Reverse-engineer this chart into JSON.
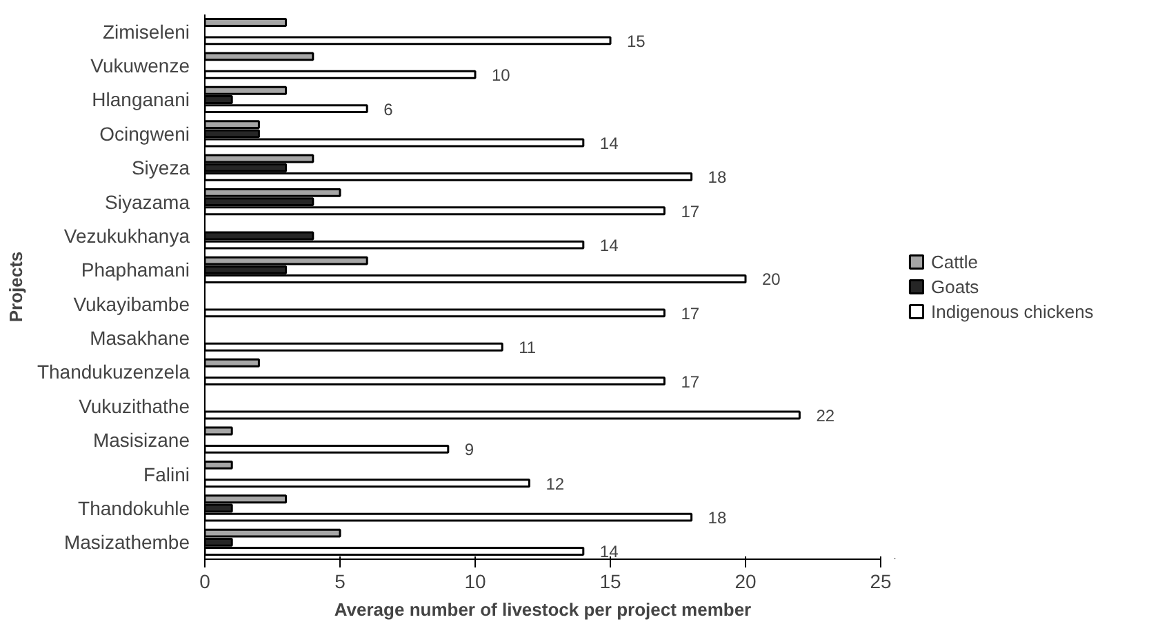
{
  "chart_data": {
    "type": "bar",
    "orientation": "horizontal",
    "xlabel": "Average number of livestock per project member",
    "ylabel": "Projects",
    "categories": [
      "Zimiseleni",
      "Vukuwenze",
      "Hlanganani",
      "Ocingweni",
      "Siyeza",
      "Siyazama",
      "Vezukukhanya",
      "Phaphamani",
      "Vukayibambe",
      "Masakhane",
      "Thandukuzenzela",
      "Vukuzithathe",
      "Masisizane",
      "Falini",
      "Thandokuhle",
      "Masizathembe"
    ],
    "series": [
      {
        "name": "Cattle",
        "color": "#a6a6a6",
        "values": [
          3,
          4,
          3,
          2,
          4,
          5,
          null,
          6,
          null,
          null,
          2,
          null,
          1,
          1,
          3,
          5
        ]
      },
      {
        "name": "Goats",
        "color": "#262626",
        "values": [
          null,
          null,
          1,
          2,
          3,
          4,
          4,
          3,
          null,
          null,
          null,
          null,
          null,
          null,
          1,
          1
        ]
      },
      {
        "name": "Indigenous chickens",
        "color": "#ffffff",
        "values": [
          15,
          10,
          6,
          14,
          18,
          17,
          14,
          20,
          17,
          11,
          17,
          22,
          9,
          12,
          18,
          14
        ],
        "value_labels": [
          "15",
          "10",
          "6",
          "14",
          "18",
          "17",
          "14",
          "20",
          "17",
          "11",
          "17",
          "22",
          "9",
          "12",
          "18",
          "14"
        ]
      }
    ],
    "xlim": [
      0,
      25
    ],
    "xticks": [
      0,
      5,
      10,
      15,
      20,
      25
    ],
    "grid": false,
    "legend": "right"
  }
}
